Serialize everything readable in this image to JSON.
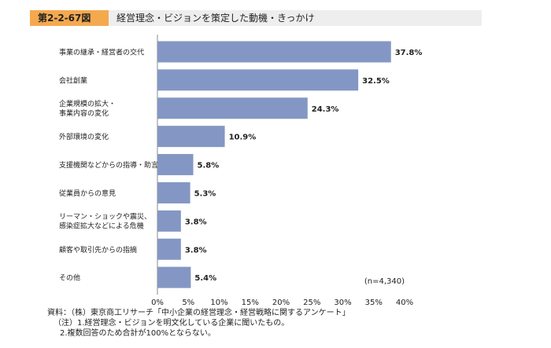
{
  "header": {
    "badge": "第2-2-67図",
    "title": "経営理念・ビジョンを策定した動機・きっかけ"
  },
  "chart_data": {
    "type": "bar",
    "orientation": "horizontal",
    "categories": [
      "事業の継承・経営者の交代",
      "会社創業",
      "企業規模の拡大・\n事業内容の変化",
      "外部環境の変化",
      "支援機関などからの指導・助言",
      "従業員からの意見",
      "リーマン・ショックや震災、\n感染症拡大などによる危機",
      "顧客や取引先からの指摘",
      "その他"
    ],
    "values": [
      37.8,
      32.5,
      24.3,
      10.9,
      5.8,
      5.3,
      3.8,
      3.8,
      5.4
    ],
    "value_labels": [
      "37.8%",
      "32.5%",
      "24.3%",
      "10.9%",
      "5.8%",
      "5.3%",
      "3.8%",
      "3.8%",
      "5.4%"
    ],
    "xlim": [
      0,
      40
    ],
    "ticks": [
      "0%",
      "5%",
      "10%",
      "15%",
      "20%",
      "25%",
      "30%",
      "35%",
      "40%"
    ],
    "annotation": "(n=4,340)",
    "bar_color": "#8497c4",
    "grid": false
  },
  "notes": [
    "資料：（株）東京商工リサーチ「中小企業の経営理念・経営戦略に関するアンケート」",
    "（注）1.経営理念・ビジョンを明文化している企業に聞いたもの。",
    "2.複数回答のため合計が100%とならない。"
  ],
  "colors": {
    "badge": "#f4a94f",
    "title_bar": "#eeeeee",
    "bar": "#8497c4"
  }
}
